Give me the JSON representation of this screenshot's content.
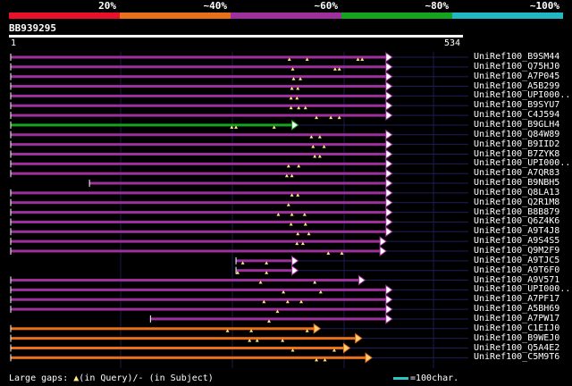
{
  "legend": {
    "segments": [
      {
        "label": "20%",
        "color": "#e8102a"
      },
      {
        "label": "~40%",
        "color": "#e87018"
      },
      {
        "label": "~60%",
        "color": "#9e309e"
      },
      {
        "label": "~80%",
        "color": "#16a31e"
      },
      {
        "label": "~100%",
        "color": "#21b8c4"
      }
    ]
  },
  "query": {
    "name": "BB939295",
    "start": "1",
    "end": "534",
    "length": 534
  },
  "hits": [
    {
      "name": "UniRef100_B9SM44",
      "start": 1,
      "end": 444,
      "color": "purple",
      "markers": [
        330,
        351,
        411,
        416
      ]
    },
    {
      "name": "UniRef100_Q75HJ0",
      "start": 1,
      "end": 444,
      "color": "purple",
      "markers": [
        334,
        384,
        389
      ]
    },
    {
      "name": "UniRef100_A7P045",
      "start": 1,
      "end": 444,
      "color": "purple",
      "markers": [
        335,
        343
      ]
    },
    {
      "name": "UniRef100_A5B299",
      "start": 1,
      "end": 444,
      "color": "purple",
      "markers": [
        333,
        340
      ]
    },
    {
      "name": "UniRef100_UPI000..",
      "start": 1,
      "end": 444,
      "color": "purple",
      "markers": [
        332,
        339
      ]
    },
    {
      "name": "UniRef100_B9SYU7",
      "start": 1,
      "end": 444,
      "color": "purple",
      "markers": [
        332,
        341,
        349
      ]
    },
    {
      "name": "UniRef100_C4J594",
      "start": 1,
      "end": 444,
      "color": "purple",
      "markers": [
        362,
        379,
        389
      ]
    },
    {
      "name": "UniRef100_B9GLH4",
      "start": 1,
      "end": 333,
      "color": "green",
      "markers": [
        262,
        267,
        312
      ]
    },
    {
      "name": "UniRef100_Q84W89",
      "start": 1,
      "end": 444,
      "color": "purple",
      "markers": [
        356,
        366
      ]
    },
    {
      "name": "UniRef100_B9IID2",
      "start": 1,
      "end": 444,
      "color": "purple",
      "markers": [
        358,
        371
      ]
    },
    {
      "name": "UniRef100_B7ZYK8",
      "start": 1,
      "end": 444,
      "color": "purple",
      "markers": [
        360,
        366
      ]
    },
    {
      "name": "UniRef100_UPI000..",
      "start": 1,
      "end": 444,
      "color": "purple",
      "markers": [
        329,
        341
      ]
    },
    {
      "name": "UniRef100_A7QR83",
      "start": 1,
      "end": 444,
      "color": "purple",
      "markers": [
        327,
        333
      ]
    },
    {
      "name": "UniRef100_B9NBH5",
      "start": 94,
      "end": 444,
      "color": "purple",
      "markers": []
    },
    {
      "name": "UniRef100_Q8LA13",
      "start": 1,
      "end": 444,
      "color": "purple",
      "markers": [
        333,
        340
      ]
    },
    {
      "name": "UniRef100_Q2R1M8",
      "start": 1,
      "end": 444,
      "color": "purple",
      "markers": [
        329
      ]
    },
    {
      "name": "UniRef100_B8B879",
      "start": 1,
      "end": 444,
      "color": "purple",
      "markers": [
        317,
        333,
        348
      ]
    },
    {
      "name": "UniRef100_Q6Z4K6",
      "start": 1,
      "end": 444,
      "color": "purple",
      "markers": [
        332,
        349
      ]
    },
    {
      "name": "UniRef100_A9T4J8",
      "start": 1,
      "end": 444,
      "color": "purple",
      "markers": [
        340,
        353
      ]
    },
    {
      "name": "UniRef100_A9S4S5",
      "start": 1,
      "end": 437,
      "color": "purple",
      "markers": [
        339,
        346
      ]
    },
    {
      "name": "UniRef100_Q9M2F9",
      "start": 1,
      "end": 437,
      "color": "purple",
      "markers": [
        376,
        392
      ]
    },
    {
      "name": "UniRef100_A9TJC5",
      "start": 267,
      "end": 333,
      "color": "purple",
      "markers": [
        275,
        303
      ]
    },
    {
      "name": "UniRef100_A9T6F0",
      "start": 267,
      "end": 333,
      "color": "purple",
      "markers": [
        269,
        303
      ]
    },
    {
      "name": "UniRef100_A9V571",
      "start": 1,
      "end": 412,
      "color": "purple",
      "markers": [
        296,
        360
      ]
    },
    {
      "name": "UniRef100_UPI000..",
      "start": 1,
      "end": 444,
      "color": "purple",
      "markers": [
        323,
        367
      ]
    },
    {
      "name": "UniRef100_A7PF17",
      "start": 1,
      "end": 444,
      "color": "purple",
      "markers": [
        300,
        328,
        344
      ]
    },
    {
      "name": "UniRef100_A5BH69",
      "start": 1,
      "end": 444,
      "color": "purple",
      "markers": [
        316
      ]
    },
    {
      "name": "UniRef100_A7PW17",
      "start": 166,
      "end": 444,
      "color": "purple",
      "markers": [
        306
      ]
    },
    {
      "name": "UniRef100_C1EIJ0",
      "start": 1,
      "end": 359,
      "color": "orange",
      "markers": [
        257,
        285,
        351
      ]
    },
    {
      "name": "UniRef100_B9WEJ0",
      "start": 1,
      "end": 408,
      "color": "orange",
      "markers": [
        283,
        292,
        322
      ]
    },
    {
      "name": "UniRef100_Q5A4E2",
      "start": 1,
      "end": 394,
      "color": "orange",
      "markers": [
        334,
        383
      ]
    },
    {
      "name": "UniRef100_C5M9T6",
      "start": 1,
      "end": 420,
      "color": "orange",
      "markers": [
        362,
        372
      ]
    }
  ],
  "footer": {
    "large_gaps": "Large gaps:",
    "in_query": "(in Query)/",
    "in_subject": "- (in Subject)",
    "scale": "=100char."
  },
  "colors": {
    "purple": "#9e309e",
    "green": "#16a31e",
    "orange": "#e87018",
    "marker": "#ffe680",
    "arrow_fill": "#ffffff"
  }
}
